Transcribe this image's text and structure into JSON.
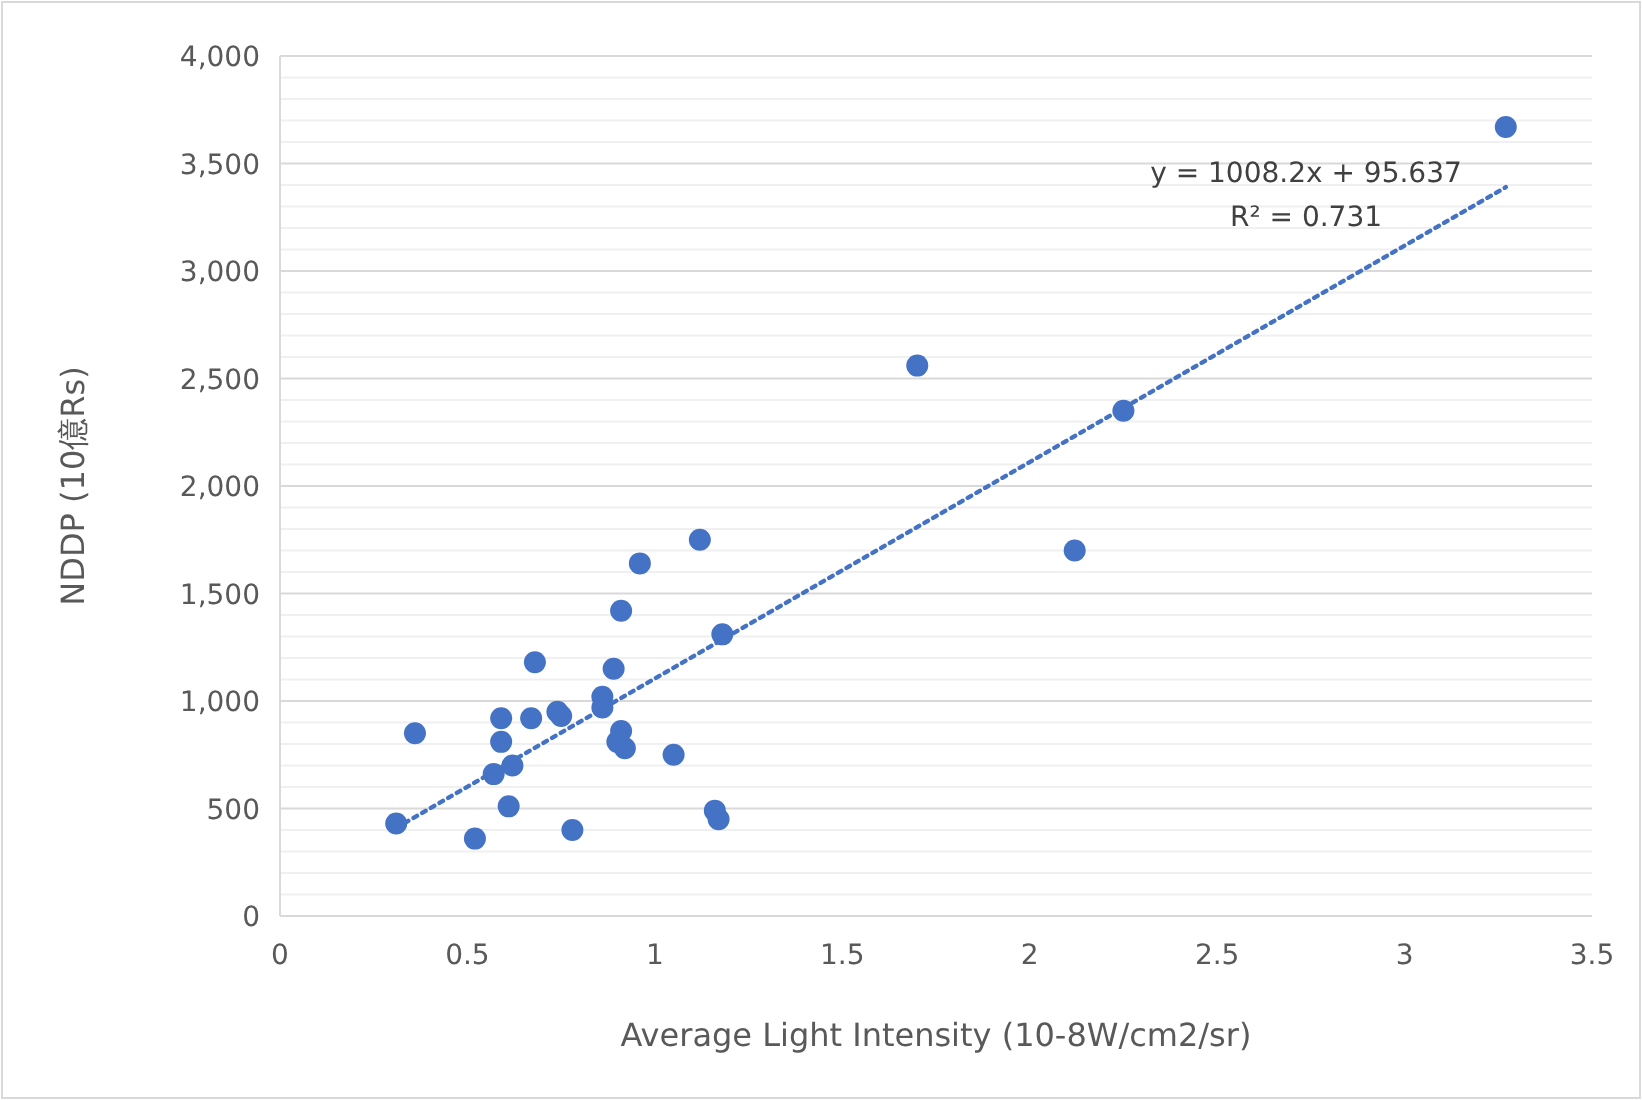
{
  "chart_data": {
    "type": "scatter",
    "xlabel": "Average Light Intensity (10-8W/cm2/sr)",
    "ylabel": "NDDP (10億Rs)",
    "annotations": [
      "y = 1008.2x  + 95.637",
      "R² = 0.731"
    ],
    "xlim": [
      0,
      3.5
    ],
    "xticks": [
      0,
      0.5,
      1,
      1.5,
      2,
      2.5,
      3,
      3.5
    ],
    "ylim": [
      0,
      4000
    ],
    "yticks": [
      0,
      {
        "value": 500,
        "label": "500"
      },
      {
        "value": 1000,
        "label": "1,000"
      },
      {
        "value": 1500,
        "label": "1,500"
      },
      {
        "value": 2000,
        "label": "2,000"
      },
      {
        "value": 2500,
        "label": "2,500"
      },
      {
        "value": 3000,
        "label": "3,000"
      },
      {
        "value": 3500,
        "label": "3,500"
      },
      {
        "value": 4000,
        "label": "4,000"
      }
    ],
    "grid": "y",
    "series": [
      {
        "type": "scatter",
        "color": "#4472c4",
        "marker": "circle",
        "x": [
          0.31,
          0.36,
          0.52,
          0.57,
          0.59,
          0.59,
          0.61,
          0.62,
          0.67,
          0.68,
          0.74,
          0.75,
          0.78,
          0.86,
          0.86,
          0.89,
          0.9,
          0.91,
          0.91,
          0.92,
          0.96,
          1.05,
          1.12,
          1.16,
          1.17,
          1.18,
          1.7,
          2.12,
          2.25,
          3.27
        ],
        "values": [
          430,
          850,
          360,
          660,
          920,
          810,
          510,
          700,
          920,
          1180,
          950,
          930,
          400,
          1020,
          970,
          1150,
          810,
          860,
          1420,
          780,
          1640,
          750,
          1750,
          490,
          450,
          1310,
          2560,
          1700,
          2350,
          3670
        ]
      },
      {
        "type": "line",
        "color": "#4472c4",
        "marker": "none",
        "line_style": "dotted",
        "x": [
          0.31,
          3.27
        ],
        "values": [
          410,
          3390
        ]
      }
    ]
  }
}
